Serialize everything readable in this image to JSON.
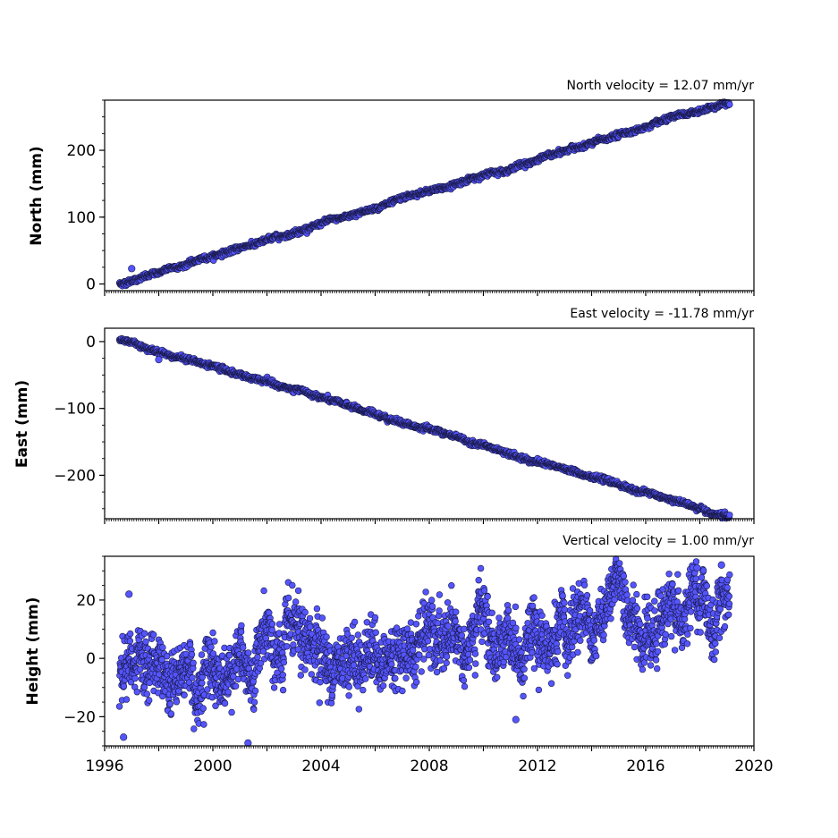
{
  "chart_data": [
    {
      "type": "scatter",
      "title": "North velocity = 12.07 mm/yr",
      "ylabel": "North (mm)",
      "xlim": [
        1996,
        2020
      ],
      "ylim": [
        -10,
        275
      ],
      "yticks": [
        0,
        100,
        200
      ],
      "show_xticklabels": false,
      "x_start": 1996.55,
      "x_end": 2019.1,
      "intercept": 0,
      "slope": 12.07,
      "noise_sd": 1.8,
      "seasonal_amp": 0.5,
      "outliers": [
        {
          "x": 1997.0,
          "y": 23
        }
      ],
      "series": [
        {
          "name": "",
          "color": "#5555ff",
          "edge": "#1a1a4a"
        }
      ]
    },
    {
      "type": "scatter",
      "title": "East velocity = -11.78 mm/yr",
      "ylabel": "East (mm)",
      "xlim": [
        1996,
        2020
      ],
      "ylim": [
        -265,
        20
      ],
      "yticks": [
        0,
        -100,
        -200
      ],
      "ytick_labels": [
        "0",
        "−100",
        "−200"
      ],
      "show_xticklabels": false,
      "x_start": 1996.55,
      "x_end": 2019.1,
      "intercept": 3,
      "slope": -11.78,
      "noise_sd": 1.8,
      "seasonal_amp": 0.6,
      "outliers": [
        {
          "x": 1998.0,
          "y": -27
        }
      ],
      "series": [
        {
          "name": "",
          "color": "#5555ff",
          "edge": "#1a1a4a"
        }
      ]
    },
    {
      "type": "scatter",
      "title": "Vertical velocity = 1.00 mm/yr",
      "ylabel": "Height (mm)",
      "xlim": [
        1996,
        2020
      ],
      "ylim": [
        -30,
        35
      ],
      "yticks": [
        -20,
        0,
        20
      ],
      "ytick_labels": [
        "−20",
        "0",
        "20"
      ],
      "show_xticklabels": true,
      "xticks": [
        1996,
        2000,
        2004,
        2008,
        2012,
        2016,
        2020
      ],
      "xtick_labels": [
        "1996",
        "2000",
        "2004",
        "2008",
        "2012",
        "2016",
        "2020"
      ],
      "x_start": 1996.55,
      "x_end": 2019.1,
      "intercept": -6,
      "slope": 1.0,
      "noise_sd": 4.8,
      "seasonal_amp": 4.0,
      "outliers": [
        {
          "x": 1996.9,
          "y": 22
        },
        {
          "x": 1996.7,
          "y": -27
        },
        {
          "x": 2001.3,
          "y": -29
        },
        {
          "x": 2017.9,
          "y": 31
        },
        {
          "x": 2018.8,
          "y": 32
        },
        {
          "x": 2011.2,
          "y": -21
        }
      ],
      "series": [
        {
          "name": "",
          "color": "#5555ff",
          "edge": "#1a1a4a"
        }
      ]
    }
  ]
}
